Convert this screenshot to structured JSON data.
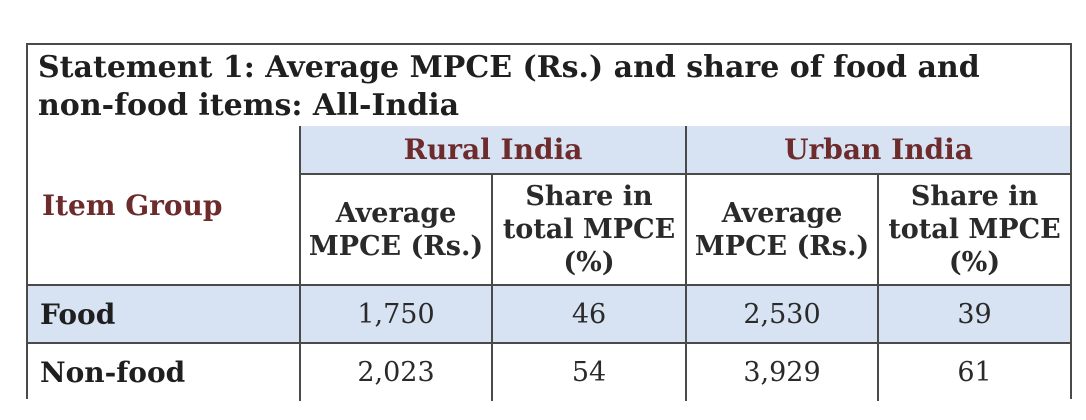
{
  "statement": {
    "title": "Statement 1: Average MPCE (Rs.) and share of food and non-food items: All-India"
  },
  "table": {
    "item_header": "Item Group",
    "groups": [
      "Rural India",
      "Urban India"
    ],
    "subheaders": {
      "rural_avg": "Average MPCE (Rs.)",
      "rural_share": "Share in total MPCE (%)",
      "urban_avg": "Average MPCE (Rs.)",
      "urban_share": "Share in total MPCE (%)"
    },
    "rows": [
      {
        "item": "Food",
        "rural_avg": "1,750",
        "rural_share": "46",
        "urban_avg": "2,530",
        "urban_share": "39"
      },
      {
        "item": "Non-food",
        "rural_avg": "2,023",
        "rural_share": "54",
        "urban_avg": "3,929",
        "urban_share": "61"
      }
    ]
  },
  "colors": {
    "header_fill": "#d7e2f3",
    "header_text": "#6e2b2b",
    "border": "#4a4a4a"
  }
}
